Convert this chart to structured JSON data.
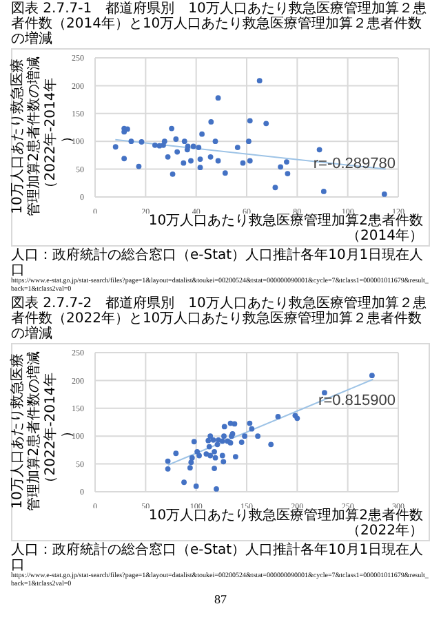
{
  "chart_data": [
    {
      "type": "scatter",
      "title": "図表 2.7.7-1　都道府県別　10万人口あたり救急医療管理加算２患者件数（2014年）と10万人口あたり救急医療管理加算２患者件数の増減",
      "xlabel": "10万人口あたり救急医療管理加算2患者件数（2014年）",
      "ylabel": "10万人口あたり救急医療管理加算2患者件数の増減（2022年-2014年）",
      "annotations": [
        "r=-0.289780",
        "人口：政府統計の総合窓口（e-Stat）人口推計各年10月1日現在人口　https://www.e-stat.go.jp/stat-search/files?page=1&layout=datalist&toukei=00200524&tstat=000000090001&cycle=7&tclass1=000001011679&result_back=1&tclass2val=0"
      ],
      "xlim": [
        0,
        120
      ],
      "xticks": [
        0,
        20,
        40,
        60,
        80,
        100,
        120
      ],
      "ylim": [
        0,
        250
      ],
      "yticks": [
        0,
        50,
        100,
        150,
        200,
        250
      ],
      "grid": true,
      "x": [
        8.1,
        11.5,
        12.8,
        11.5,
        11.5,
        14.3,
        17.3,
        18.4,
        23.7,
        25.5,
        27,
        27.5,
        28.8,
        30.3,
        30.7,
        32,
        32.5,
        35.4,
        35,
        36.5,
        36.7,
        37.9,
        38.9,
        41,
        41.6,
        41.6,
        42.3,
        45.7,
        45.9,
        47.6,
        48.7,
        48.7,
        51.5,
        56.4,
        58.5,
        60.8,
        61.3,
        61.3,
        65.1,
        67.7,
        71.3,
        73.4,
        75.8,
        76.2,
        88.8,
        90.5,
        114.5
      ],
      "series": [
        {
          "type": "scatter",
          "marker": "circle",
          "color": "#4472c4",
          "values": [
            90,
            123,
            122,
            117,
            69,
            100,
            55,
            99,
            93,
            92,
            93,
            100,
            72,
            123,
            41,
            104,
            81,
            100,
            61,
            85,
            91,
            65,
            91,
            89,
            68,
            53,
            113,
            72,
            135,
            100,
            65,
            178,
            43,
            89,
            61,
            100,
            137,
            65,
            209,
            132,
            17,
            54,
            63,
            42,
            85,
            10,
            5
          ]
        },
        {
          "type": "line",
          "color": "#9dc3e6",
          "x": [
            8,
            115
          ],
          "values": [
            103,
            50
          ]
        }
      ]
    },
    {
      "type": "scatter",
      "title": "図表 2.7.7-2　都道府県別　10万人口あたり救急医療管理加算２患者件数（2022年）と10万人口あたり救急医療管理加算２患者件数の増減",
      "xlabel": "10万人口あたり救急医療管理加算2患者件数（2022年）",
      "ylabel": "10万人口あたり救急医療管理加算2患者件数の増減（2022年-2014年）",
      "annotations": [
        "r=0.815900",
        "人口：政府統計の総合窓口（e-Stat）人口推計各年10月1日現在人口　https://www.e-stat.go.jp/stat-search/files?page=1&layout=datalist&toukei=00200524&tstat=000000090001&cycle=7&tclass1=000001011679&result_back=1&tclass2val=0",
        "87"
      ],
      "xlim": [
        0,
        300
      ],
      "xticks": [
        0,
        50,
        100,
        150,
        200,
        250,
        300
      ],
      "ylim": [
        0,
        250
      ],
      "yticks": [
        0,
        50,
        100,
        150,
        200,
        250
      ],
      "grid": true,
      "x": [
        98,
        134,
        138,
        128,
        80,
        114,
        72,
        117,
        112,
        122,
        127.5,
        101,
        153,
        72,
        136,
        113,
        135,
        96,
        121,
        126,
        103,
        131,
        134,
        110,
        95,
        155,
        118,
        181,
        148,
        114,
        227,
        94,
        145,
        119,
        161,
        198,
        126,
        274,
        200,
        88,
        127,
        139,
        118,
        174,
        100,
        120
      ],
      "series": [
        {
          "type": "scatter",
          "marker": "circle",
          "color": "#4472c4",
          "values": [
            90,
            123,
            122,
            117,
            69,
            100,
            55,
            93,
            92,
            93,
            100,
            72,
            123,
            41,
            104,
            81,
            100,
            61,
            85,
            91,
            65,
            91,
            88,
            68,
            53,
            113,
            72,
            135,
            100,
            65,
            178,
            43,
            89,
            61,
            100,
            137,
            65,
            209,
            132,
            17,
            54,
            63,
            42,
            85,
            10,
            5
          ]
        },
        {
          "type": "line",
          "color": "#9dc3e6",
          "x": [
            72,
            275
          ],
          "values": [
            48,
            202
          ]
        }
      ]
    }
  ]
}
